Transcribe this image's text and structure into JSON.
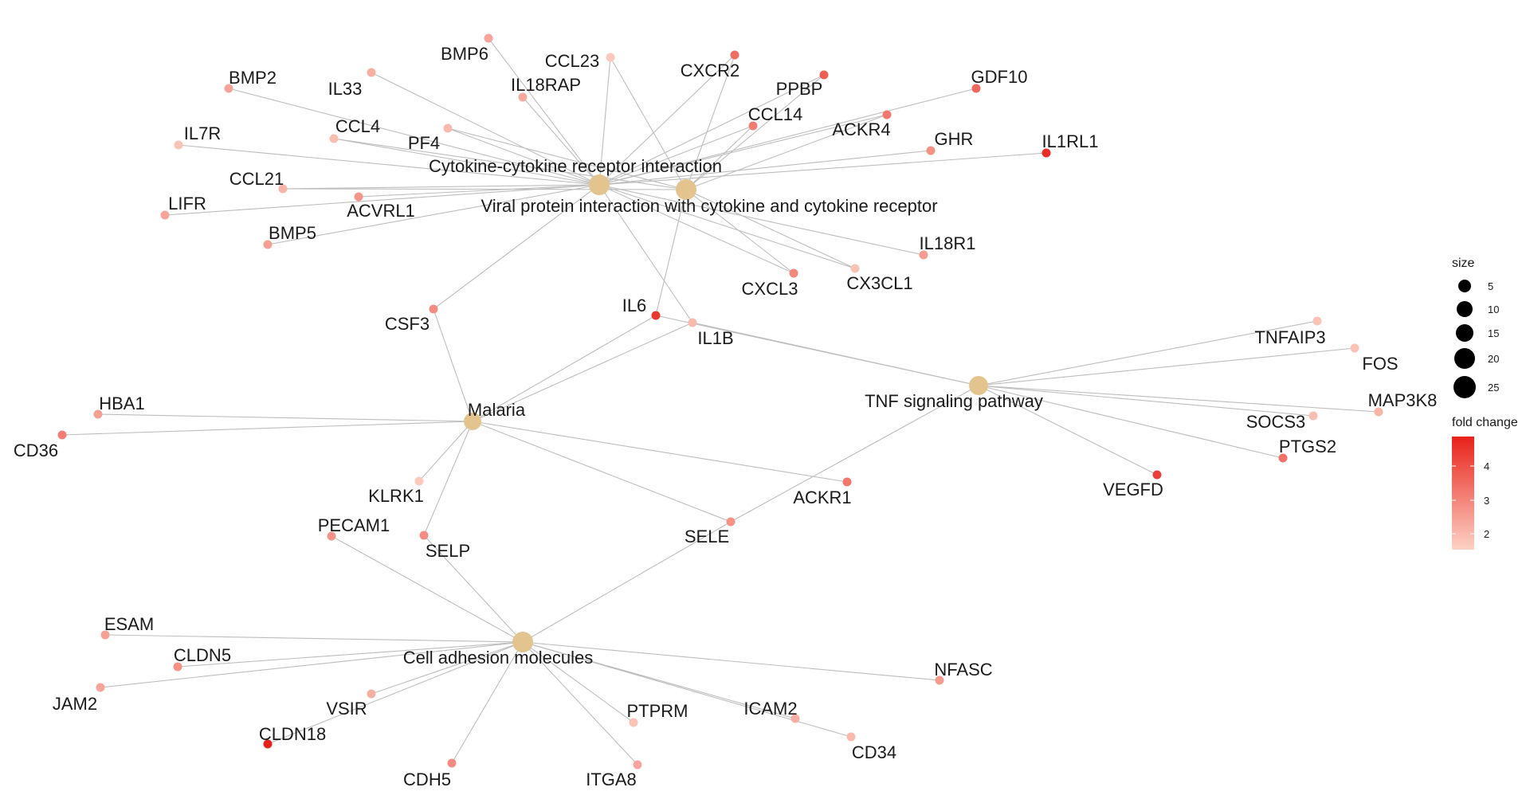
{
  "colors": {
    "category_node": "#e3c48f",
    "edge": "#bdbdbd",
    "gradient_low": "#fcd2c5",
    "gradient_high": "#e8221a"
  },
  "categories": [
    {
      "id": "cyto",
      "label": "Cytokine-cytokine receptor interaction"
    },
    {
      "id": "viral",
      "label": "Viral protein interaction with cytokine and cytokine receptor"
    },
    {
      "id": "tnf",
      "label": "TNF signaling pathway"
    },
    {
      "id": "mal",
      "label": "Malaria"
    },
    {
      "id": "cam",
      "label": "Cell adhesion molecules"
    }
  ],
  "genes": [
    {
      "id": "BMP6",
      "label": "BMP6",
      "fc": 2.4,
      "cats": [
        "cyto"
      ]
    },
    {
      "id": "CCL23",
      "label": "CCL23",
      "fc": 1.7,
      "cats": [
        "cyto",
        "viral"
      ]
    },
    {
      "id": "CXCR2",
      "label": "CXCR2",
      "fc": 3.5,
      "cats": [
        "cyto",
        "viral"
      ]
    },
    {
      "id": "BMP2",
      "label": "BMP2",
      "fc": 2.4,
      "cats": [
        "cyto"
      ]
    },
    {
      "id": "IL33",
      "label": "IL33",
      "fc": 2.2,
      "cats": [
        "cyto"
      ]
    },
    {
      "id": "IL18RAP",
      "label": "IL18RAP",
      "fc": 2.3,
      "cats": [
        "cyto"
      ]
    },
    {
      "id": "PPBP",
      "label": "PPBP",
      "fc": 3.8,
      "cats": [
        "cyto",
        "viral"
      ]
    },
    {
      "id": "GDF10",
      "label": "GDF10",
      "fc": 3.6,
      "cats": [
        "cyto"
      ]
    },
    {
      "id": "CCL14",
      "label": "CCL14",
      "fc": 3.2,
      "cats": [
        "cyto",
        "viral"
      ]
    },
    {
      "id": "ACKR4",
      "label": "ACKR4",
      "fc": 3.3,
      "cats": [
        "cyto",
        "viral"
      ]
    },
    {
      "id": "IL7R",
      "label": "IL7R",
      "fc": 1.8,
      "cats": [
        "cyto"
      ]
    },
    {
      "id": "CCL4",
      "label": "CCL4",
      "fc": 1.9,
      "cats": [
        "cyto",
        "viral"
      ]
    },
    {
      "id": "PF4",
      "label": "PF4",
      "fc": 2.0,
      "cats": [
        "cyto",
        "viral"
      ]
    },
    {
      "id": "GHR",
      "label": "GHR",
      "fc": 2.8,
      "cats": [
        "cyto"
      ]
    },
    {
      "id": "IL1RL1",
      "label": "IL1RL1",
      "fc": 4.8,
      "cats": [
        "cyto"
      ]
    },
    {
      "id": "CCL21",
      "label": "CCL21",
      "fc": 2.1,
      "cats": [
        "cyto",
        "viral"
      ]
    },
    {
      "id": "LIFR",
      "label": "LIFR",
      "fc": 2.4,
      "cats": [
        "cyto"
      ]
    },
    {
      "id": "ACVRL1",
      "label": "ACVRL1",
      "fc": 2.7,
      "cats": [
        "cyto"
      ]
    },
    {
      "id": "BMP5",
      "label": "BMP5",
      "fc": 2.5,
      "cats": [
        "cyto"
      ]
    },
    {
      "id": "IL18R1",
      "label": "IL18R1",
      "fc": 2.6,
      "cats": [
        "cyto"
      ]
    },
    {
      "id": "CXCL3",
      "label": "CXCL3",
      "fc": 3.0,
      "cats": [
        "cyto",
        "viral"
      ]
    },
    {
      "id": "CX3CL1",
      "label": "CX3CL1",
      "fc": 1.8,
      "cats": [
        "cyto",
        "viral"
      ]
    },
    {
      "id": "CSF3",
      "label": "CSF3",
      "fc": 2.9,
      "cats": [
        "cyto",
        "mal"
      ]
    },
    {
      "id": "IL6",
      "label": "IL6",
      "fc": 4.6,
      "cats": [
        "viral",
        "mal",
        "tnf"
      ]
    },
    {
      "id": "IL1B",
      "label": "IL1B",
      "fc": 2.0,
      "cats": [
        "cyto",
        "mal",
        "tnf"
      ]
    },
    {
      "id": "TNFAIP3",
      "label": "TNFAIP3",
      "fc": 1.8,
      "cats": [
        "tnf"
      ]
    },
    {
      "id": "FOS",
      "label": "FOS",
      "fc": 1.8,
      "cats": [
        "tnf"
      ]
    },
    {
      "id": "MAP3K8",
      "label": "MAP3K8",
      "fc": 2.1,
      "cats": [
        "tnf"
      ]
    },
    {
      "id": "SOCS3",
      "label": "SOCS3",
      "fc": 1.9,
      "cats": [
        "tnf"
      ]
    },
    {
      "id": "PTGS2",
      "label": "PTGS2",
      "fc": 3.4,
      "cats": [
        "tnf"
      ]
    },
    {
      "id": "VEGFD",
      "label": "VEGFD",
      "fc": 4.4,
      "cats": [
        "tnf"
      ]
    },
    {
      "id": "HBA1",
      "label": "HBA1",
      "fc": 2.5,
      "cats": [
        "mal"
      ]
    },
    {
      "id": "CD36",
      "label": "CD36",
      "fc": 3.2,
      "cats": [
        "mal"
      ]
    },
    {
      "id": "KLRK1",
      "label": "KLRK1",
      "fc": 1.7,
      "cats": [
        "mal"
      ]
    },
    {
      "id": "ACKR1",
      "label": "ACKR1",
      "fc": 3.3,
      "cats": [
        "mal"
      ]
    },
    {
      "id": "PECAM1",
      "label": "PECAM1",
      "fc": 2.8,
      "cats": [
        "cam"
      ]
    },
    {
      "id": "SELP",
      "label": "SELP",
      "fc": 2.9,
      "cats": [
        "mal",
        "cam"
      ]
    },
    {
      "id": "SELE",
      "label": "SELE",
      "fc": 2.8,
      "cats": [
        "mal",
        "tnf",
        "cam"
      ]
    },
    {
      "id": "ESAM",
      "label": "ESAM",
      "fc": 2.5,
      "cats": [
        "cam"
      ]
    },
    {
      "id": "CLDN5",
      "label": "CLDN5",
      "fc": 2.8,
      "cats": [
        "cam"
      ]
    },
    {
      "id": "JAM2",
      "label": "JAM2",
      "fc": 2.4,
      "cats": [
        "cam"
      ]
    },
    {
      "id": "VSIR",
      "label": "VSIR",
      "fc": 2.2,
      "cats": [
        "cam"
      ]
    },
    {
      "id": "CLDN18",
      "label": "CLDN18",
      "fc": 5.0,
      "cats": [
        "cam"
      ]
    },
    {
      "id": "CDH5",
      "label": "CDH5",
      "fc": 2.9,
      "cats": [
        "cam"
      ]
    },
    {
      "id": "PTPRM",
      "label": "PTPRM",
      "fc": 1.8,
      "cats": [
        "cam"
      ]
    },
    {
      "id": "ITGA8",
      "label": "ITGA8",
      "fc": 2.4,
      "cats": [
        "cam"
      ]
    },
    {
      "id": "ICAM2",
      "label": "ICAM2",
      "fc": 2.2,
      "cats": [
        "cam"
      ]
    },
    {
      "id": "CD34",
      "label": "CD34",
      "fc": 2.0,
      "cats": [
        "cam"
      ]
    },
    {
      "id": "NFASC",
      "label": "NFASC",
      "fc": 2.6,
      "cats": [
        "cam"
      ]
    }
  ],
  "legend": {
    "size_title": "size",
    "size_values": [
      "5",
      "10",
      "15",
      "20",
      "25"
    ],
    "color_title": "fold change",
    "color_ticks": [
      "4",
      "3",
      "2"
    ]
  }
}
